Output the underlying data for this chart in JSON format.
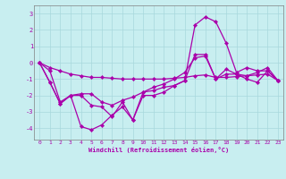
{
  "xlabel": "Windchill (Refroidissement éolien,°C)",
  "background_color": "#c8eef0",
  "grid_color": "#a8d8dc",
  "line_color": "#aa00aa",
  "x_ticks": [
    0,
    1,
    2,
    3,
    4,
    5,
    6,
    7,
    8,
    9,
    10,
    11,
    12,
    13,
    14,
    15,
    16,
    17,
    18,
    19,
    20,
    21,
    22,
    23
  ],
  "y_ticks": [
    -4,
    -3,
    -2,
    -1,
    0,
    1,
    2,
    3
  ],
  "ylim": [
    -4.7,
    3.5
  ],
  "xlim": [
    -0.5,
    23.5
  ],
  "series1": [
    0.0,
    -1.2,
    -2.5,
    -2.0,
    -3.9,
    -4.1,
    -3.8,
    -3.2,
    -2.7,
    -3.5,
    -1.8,
    -1.7,
    -1.5,
    -1.4,
    -1.1,
    2.3,
    2.8,
    2.5,
    1.2,
    -0.6,
    -0.3,
    -0.5,
    -0.5,
    -1.1
  ],
  "series2": [
    0.0,
    -1.2,
    -2.5,
    -2.0,
    -2.0,
    -2.6,
    -2.7,
    -3.3,
    -2.4,
    -3.5,
    -2.0,
    -2.0,
    -1.8,
    -1.4,
    -1.1,
    0.5,
    0.5,
    -1.0,
    -0.4,
    -0.7,
    -1.0,
    -1.2,
    -0.5,
    -1.1
  ],
  "series3": [
    0.0,
    -0.5,
    -2.4,
    -2.0,
    -1.9,
    -1.9,
    -2.4,
    -2.6,
    -2.3,
    -2.1,
    -1.8,
    -1.5,
    -1.3,
    -1.0,
    -0.6,
    0.3,
    0.4,
    -1.0,
    -0.7,
    -0.7,
    -0.8,
    -0.6,
    -0.3,
    -1.1
  ],
  "series4": [
    0.0,
    -0.3,
    -0.5,
    -0.7,
    -0.8,
    -0.9,
    -0.9,
    -0.95,
    -1.0,
    -1.0,
    -1.0,
    -1.0,
    -1.0,
    -0.95,
    -0.9,
    -0.8,
    -0.75,
    -0.9,
    -0.9,
    -0.85,
    -0.8,
    -0.75,
    -0.7,
    -1.1
  ],
  "xlabel_fontsize": 5,
  "tick_fontsize": 4.5
}
